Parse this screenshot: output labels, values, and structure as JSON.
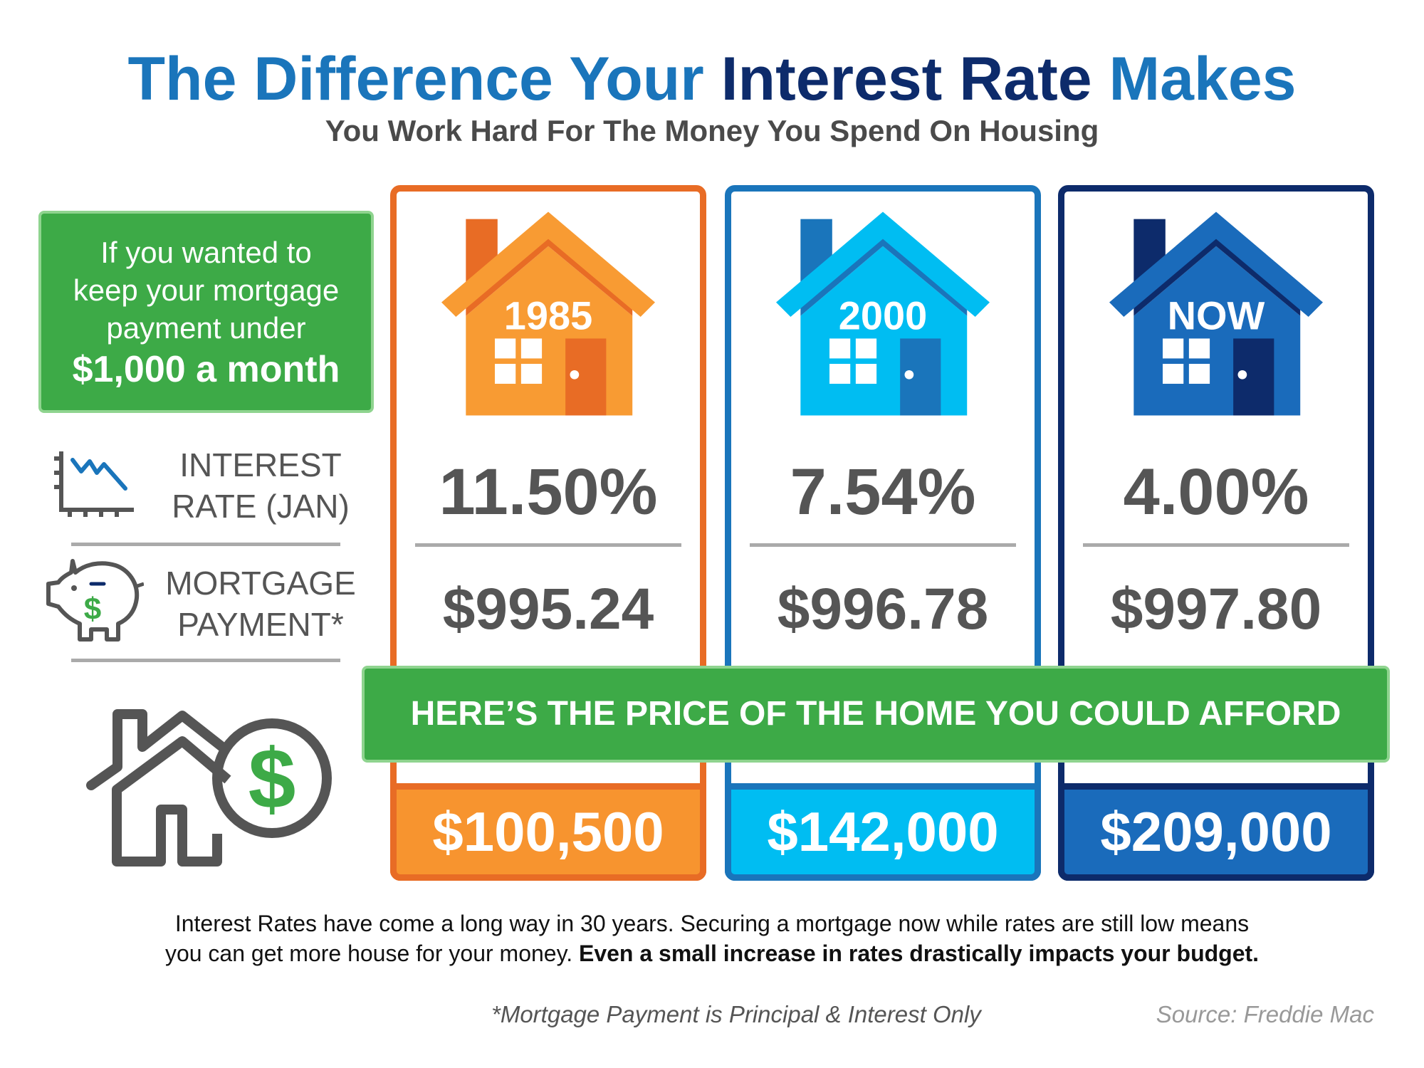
{
  "title": {
    "part1": "The Difference Your",
    "part2": "Interest Rate",
    "part3": "Makes"
  },
  "subtitle": "You Work Hard For The Money You Spend On Housing",
  "intro": {
    "line1": "If you wanted to",
    "line2": "keep your mortgage",
    "line3": "payment under",
    "line4": "$1,000 a month"
  },
  "labels": {
    "rate_line1": "INTEREST",
    "rate_line2": "RATE (JAN)",
    "payment_line1": "MORTGAGE",
    "payment_line2": "PAYMENT*"
  },
  "icons": {
    "rate": "chart-down-icon",
    "payment": "piggy-bank-dollar-icon",
    "price": "house-dollar-icon"
  },
  "columns": [
    {
      "label": "1985",
      "rate": "11.50%",
      "payment": "$995.24",
      "price": "$100,500",
      "colors": {
        "border": "#e86c25",
        "light": "#f89b33",
        "dark": "#e86c25",
        "price_bg": "#f7942f"
      }
    },
    {
      "label": "2000",
      "rate": "7.54%",
      "payment": "$996.78",
      "price": "$142,000",
      "colors": {
        "border": "#1a75bb",
        "light": "#00bdf2",
        "dark": "#1a75bb",
        "price_bg": "#00bdf2"
      }
    },
    {
      "label": "NOW",
      "rate": "4.00%",
      "payment": "$997.80",
      "price": "$209,000",
      "colors": {
        "border": "#0d2b6b",
        "light": "#1a6bbb",
        "dark": "#0d2b6b",
        "price_bg": "#1a6bbb"
      }
    }
  ],
  "banner": "HERE’S THE PRICE OF THE HOME YOU COULD AFFORD",
  "body": {
    "text1": "Interest Rates have come a long way in 30 years. Securing a mortgage now while rates are still low means",
    "text2": "you can get more house for your money.",
    "bold": "Even a small increase in rates drastically impacts your budget."
  },
  "footnote": "*Mortgage Payment is Principal & Interest Only",
  "source": "Source: Freddie Mac"
}
